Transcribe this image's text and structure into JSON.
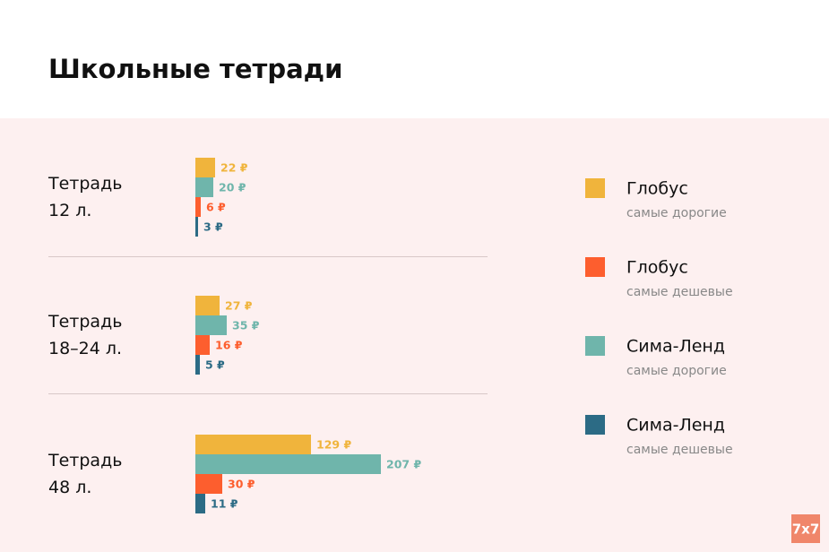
{
  "chart_data": {
    "type": "bar",
    "orientation": "horizontal",
    "title": "Школьные тетради",
    "categories": [
      "Тетрадь 12 л.",
      "Тетрадь 18–24 л.",
      "Тетрадь 48 л."
    ],
    "series": [
      {
        "name": "Глобус",
        "subtitle": "самые дорогие",
        "color": "#f0b43c",
        "values": [
          22,
          27,
          129
        ],
        "value_labels": [
          "22 ₽",
          "27 ₽",
          "129 ₽"
        ]
      },
      {
        "name": "Сима-Ленд",
        "subtitle": "самые дорогие",
        "color": "#6fb5ab",
        "values": [
          20,
          35,
          207
        ],
        "value_labels": [
          "20 ₽",
          "35 ₽",
          "207 ₽"
        ]
      },
      {
        "name": "Глобус",
        "subtitle": "самые дешевые",
        "color": "#fd5e2e",
        "values": [
          6,
          16,
          30
        ],
        "value_labels": [
          "6 ₽",
          "16 ₽",
          "30 ₽"
        ]
      },
      {
        "name": "Сима-Ленд",
        "subtitle": "самые дешевые",
        "color": "#2c6b85",
        "values": [
          3,
          5,
          11
        ],
        "value_labels": [
          "3 ₽",
          "5 ₽",
          "11 ₽"
        ]
      }
    ],
    "logo": "7x7"
  }
}
